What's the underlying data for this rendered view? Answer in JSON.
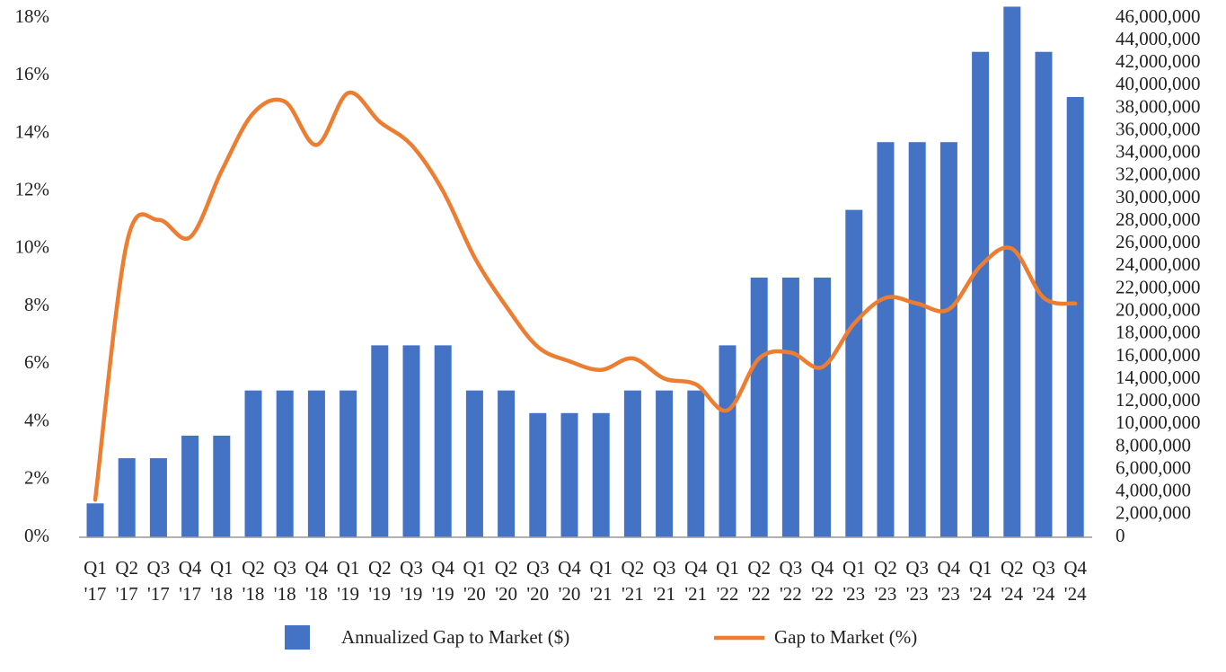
{
  "chart_data": {
    "type": "combo",
    "categories": [
      "Q1 '17",
      "Q2 '17",
      "Q3 '17",
      "Q4 '17",
      "Q1 '18",
      "Q2 '18",
      "Q3 '18",
      "Q4 '18",
      "Q1 '19",
      "Q2 '19",
      "Q3 '19",
      "Q4 '19",
      "Q1 '20",
      "Q2 '20",
      "Q3 '20",
      "Q4 '20",
      "Q1 '21",
      "Q2 '21",
      "Q3 '21",
      "Q4 '21",
      "Q1 '22",
      "Q2 '22",
      "Q3 '22",
      "Q4 '22",
      "Q1 '23",
      "Q2 '23",
      "Q3 '23",
      "Q4 '23",
      "Q1 '24",
      "Q2 '24",
      "Q3 '24",
      "Q4 '24"
    ],
    "series": [
      {
        "name": "Annualized Gap to Market ($)",
        "type": "bar",
        "axis": "y2",
        "color": "#4472c4",
        "values": [
          3000000,
          7000000,
          7000000,
          9000000,
          9000000,
          13000000,
          13000000,
          13000000,
          13000000,
          17000000,
          17000000,
          17000000,
          13000000,
          13000000,
          11000000,
          11000000,
          11000000,
          13000000,
          13000000,
          13000000,
          17000000,
          23000000,
          23000000,
          23000000,
          29000000,
          35000000,
          35000000,
          35000000,
          43000000,
          47000000,
          43000000,
          39000000
        ]
      },
      {
        "name": "Gap to Market (%)",
        "type": "line",
        "axis": "y",
        "color": "#ed7d31",
        "values": [
          1.3,
          10.2,
          11.0,
          10.4,
          12.7,
          14.7,
          15.1,
          13.6,
          15.4,
          14.4,
          13.6,
          12.0,
          9.7,
          8.0,
          6.6,
          6.1,
          5.8,
          6.2,
          5.5,
          5.3,
          4.4,
          6.2,
          6.4,
          5.9,
          7.4,
          8.3,
          8.1,
          7.9,
          9.4,
          10.0,
          8.3,
          8.1
        ]
      }
    ],
    "ylim": [
      0,
      18
    ],
    "yticks": [
      {
        "value": 0,
        "label": "0%"
      },
      {
        "value": 2,
        "label": "2%"
      },
      {
        "value": 4,
        "label": "4%"
      },
      {
        "value": 6,
        "label": "6%"
      },
      {
        "value": 8,
        "label": "8%"
      },
      {
        "value": 10,
        "label": "10%"
      },
      {
        "value": 12,
        "label": "12%"
      },
      {
        "value": 14,
        "label": "14%"
      },
      {
        "value": 16,
        "label": "16%"
      },
      {
        "value": 18,
        "label": "18%"
      }
    ],
    "y2lim": [
      0,
      46000000
    ],
    "y2ticks": [
      0,
      {
        "value": 2000000,
        "label": "2,000,000"
      },
      {
        "value": 4000000,
        "label": "4,000,000"
      },
      {
        "value": 6000000,
        "label": "6,000,000"
      },
      {
        "value": 8000000,
        "label": "8,000,000"
      },
      {
        "value": 10000000,
        "label": "10,000,000"
      },
      {
        "value": 12000000,
        "label": "12,000,000"
      },
      {
        "value": 14000000,
        "label": "14,000,000"
      },
      {
        "value": 16000000,
        "label": "16,000,000"
      },
      {
        "value": 18000000,
        "label": "18,000,000"
      },
      {
        "value": 20000000,
        "label": "20,000,000"
      },
      {
        "value": 22000000,
        "label": "22,000,000"
      },
      {
        "value": 24000000,
        "label": "24,000,000"
      },
      {
        "value": 26000000,
        "label": "26,000,000"
      },
      {
        "value": 28000000,
        "label": "28,000,000"
      },
      {
        "value": 30000000,
        "label": "30,000,000"
      },
      {
        "value": 32000000,
        "label": "32,000,000"
      },
      {
        "value": 34000000,
        "label": "34,000,000"
      },
      {
        "value": 36000000,
        "label": "36,000,000"
      },
      {
        "value": 38000000,
        "label": "38,000,000"
      },
      {
        "value": 40000000,
        "label": "40,000,000"
      },
      {
        "value": 42000000,
        "label": "42,000,000"
      },
      {
        "value": 44000000,
        "label": "44,000,000"
      },
      {
        "value": 46000000,
        "label": "46,000,000"
      }
    ],
    "grid": false,
    "legend": "bottom"
  }
}
